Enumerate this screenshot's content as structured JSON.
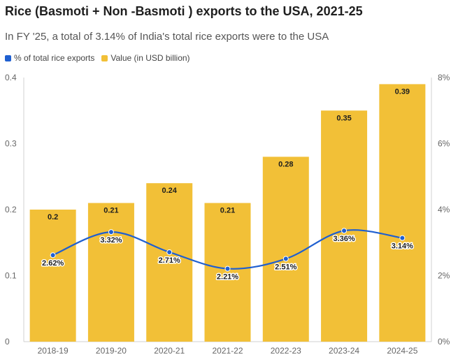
{
  "chart_data": {
    "type": "bar",
    "title": "Rice (Basmoti + Non -Basmoti ) exports to the USA, 2021-25",
    "subtitle": "In FY '25, a total of 3.14% of India's total rice exports were to the USA",
    "categories": [
      "2018-19",
      "2019-20",
      "2020-21",
      "2021-22",
      "2022-23",
      "2023-24",
      "2024-25"
    ],
    "series": [
      {
        "name": "% of total rice exports",
        "type": "line",
        "axis": "right",
        "color": "#1f5fd0",
        "values": [
          2.62,
          3.32,
          2.71,
          2.21,
          2.51,
          3.36,
          3.14
        ],
        "labels": [
          "2.62%",
          "3.32%",
          "2.71%",
          "2.21%",
          "2.51%",
          "3.36%",
          "3.14%"
        ]
      },
      {
        "name": "Value (in USD billion)",
        "type": "bar",
        "axis": "left",
        "color": "#f2c037",
        "values": [
          0.2,
          0.21,
          0.24,
          0.21,
          0.28,
          0.35,
          0.39
        ],
        "labels": [
          "0.2",
          "0.21",
          "0.24",
          "0.21",
          "0.28",
          "0.35",
          "0.39"
        ]
      }
    ],
    "y_left": {
      "min": 0,
      "max": 0.4,
      "ticks": [
        0,
        0.1,
        0.2,
        0.3,
        0.4
      ],
      "tick_labels": [
        "0",
        "0.1",
        "0.2",
        "0.3",
        "0.4"
      ]
    },
    "y_right": {
      "min": 0,
      "max": 8,
      "ticks": [
        0,
        2,
        4,
        6,
        8
      ],
      "tick_labels": [
        "0%",
        "2%",
        "4%",
        "6%",
        "8%"
      ]
    },
    "grid": false,
    "legend_position": "top-left"
  }
}
